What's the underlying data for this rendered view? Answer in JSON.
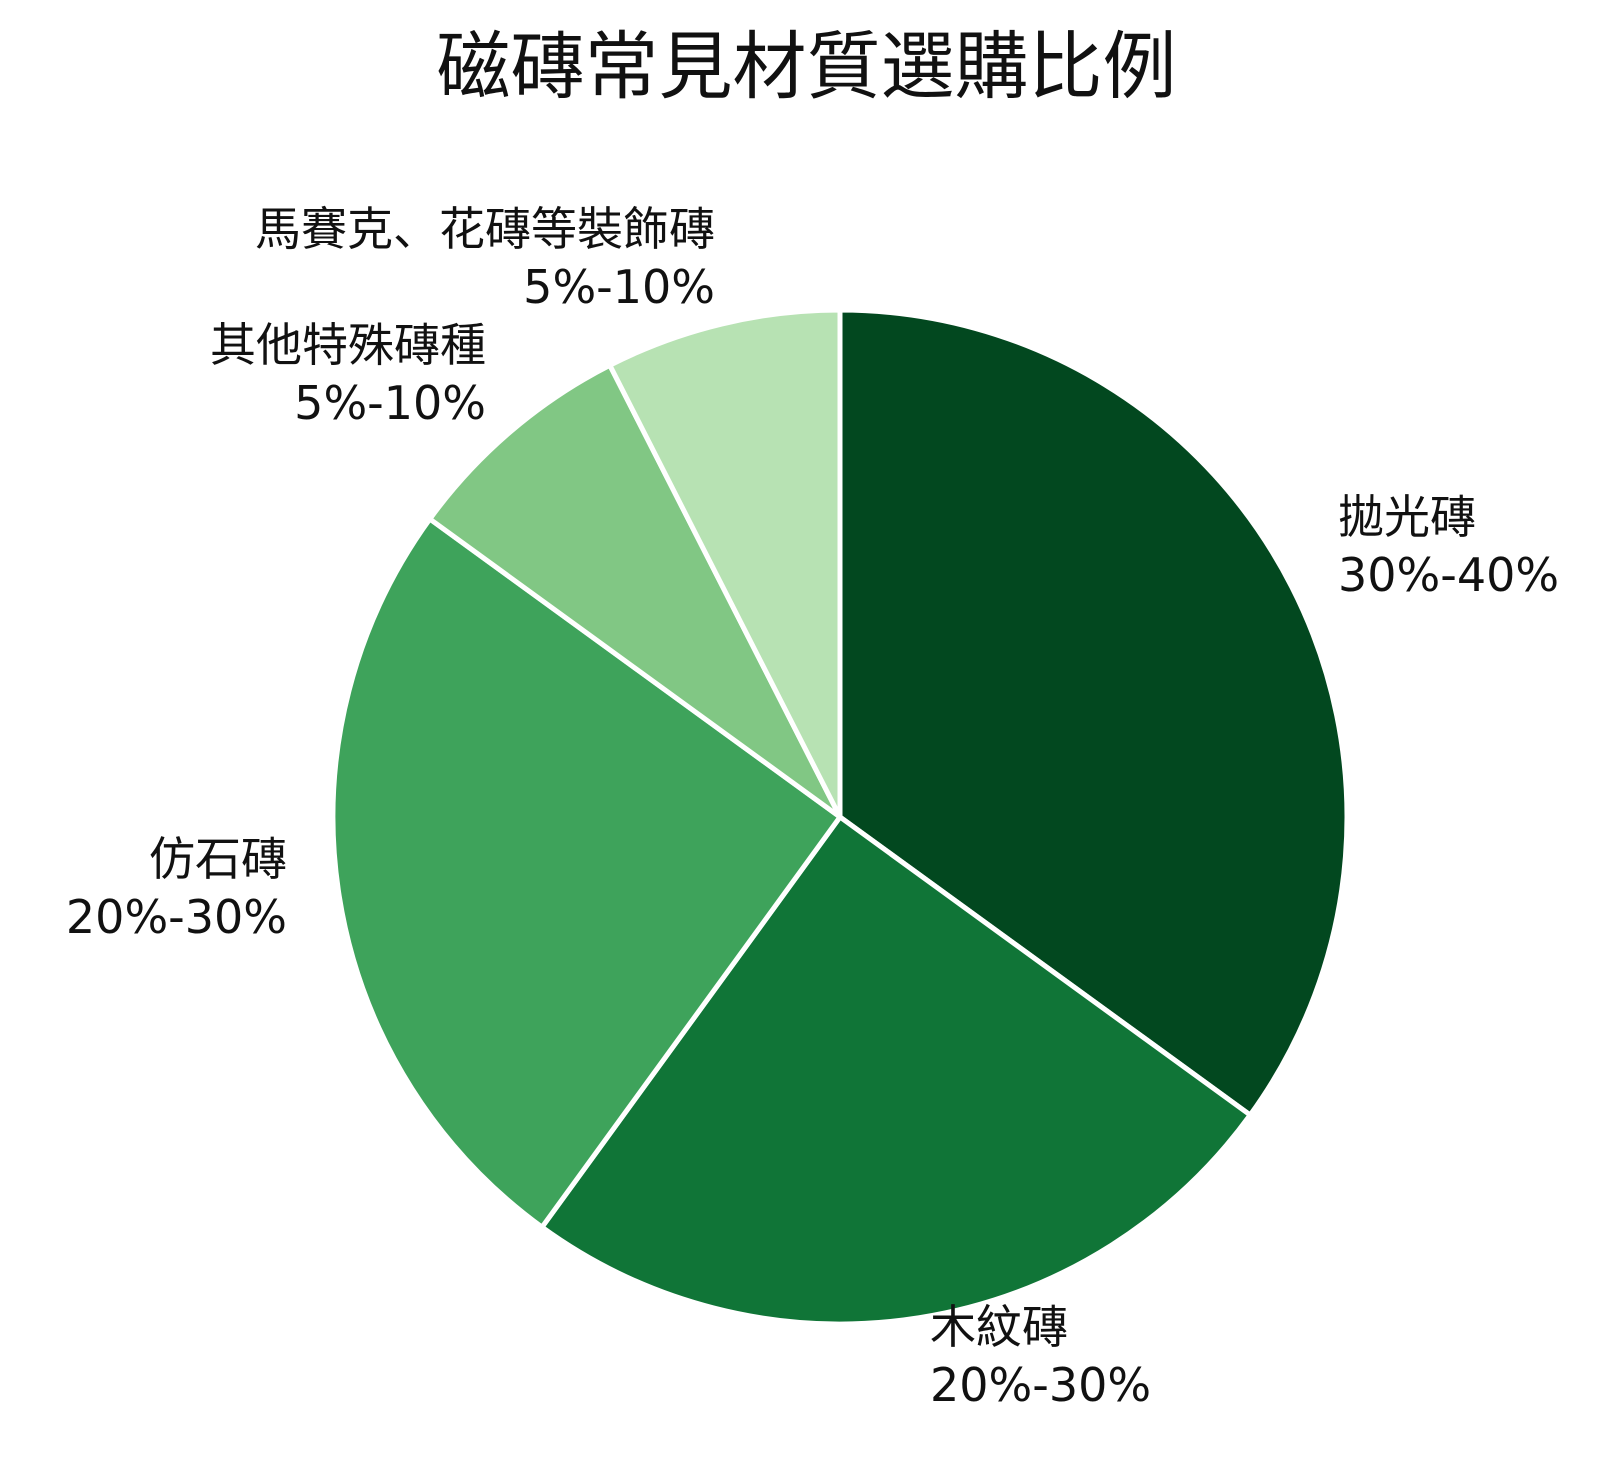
{
  "chart_data": {
    "type": "pie",
    "title": "磁磚常見材質選購比例",
    "slices": [
      {
        "name": "拋光磚",
        "label": "30%-40%",
        "value": 35,
        "color": "#02481f"
      },
      {
        "name": "木紋磚",
        "label": "20%-30%",
        "value": 25,
        "color": "#107537"
      },
      {
        "name": "仿石磚",
        "label": "20%-30%",
        "value": 25,
        "color": "#3ea35b"
      },
      {
        "name": "其他特殊磚種",
        "label": "5%-10%",
        "value": 7.5,
        "color": "#81c784"
      },
      {
        "name": "馬賽克、花磚等裝飾磚",
        "label": "5%-10%",
        "value": 7.5,
        "color": "#b7e2b3"
      }
    ],
    "start_angle": "top",
    "direction": "clockwise",
    "slice_separator_color": "#ffffff",
    "legend": "none"
  }
}
